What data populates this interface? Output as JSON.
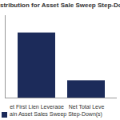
{
  "chart_data": {
    "type": "bar",
    "title": "stribution for Asset Sale Sweep Step-Downs*",
    "categories": [
      "et First Lien Leverage",
      "Net Total Leve"
    ],
    "series": [
      {
        "name": "ain Asset Sales Sweep Step-Down(s)",
        "color": "#1c2b5a",
        "values": [
          79,
          21
        ]
      }
    ],
    "ylim": [
      0,
      100
    ],
    "yticks": [],
    "tick_labels": "x",
    "legend": "bottom",
    "grid": false
  }
}
